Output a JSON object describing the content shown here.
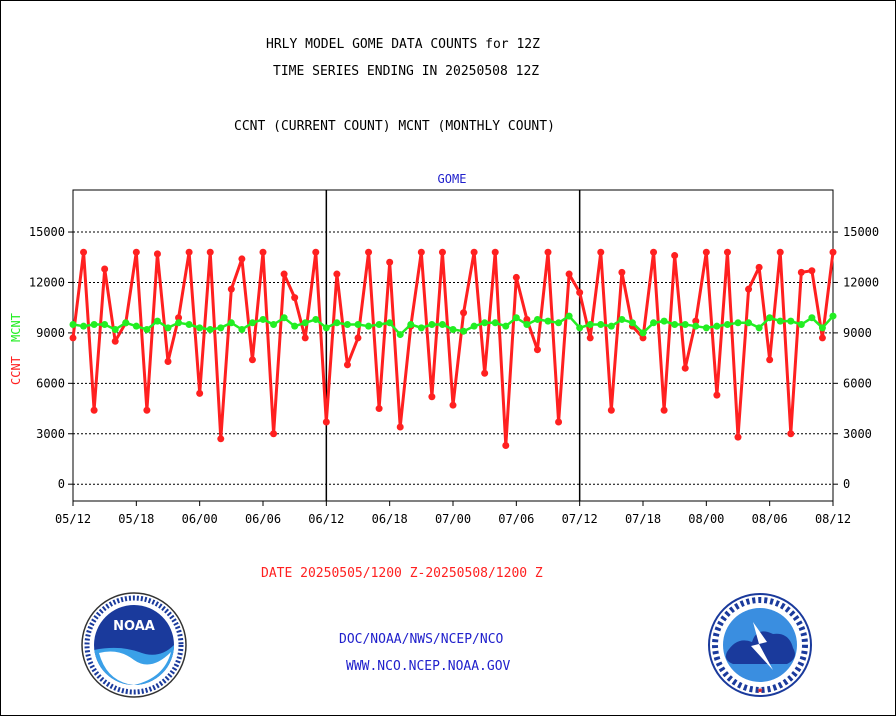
{
  "header": {
    "title_line1": "HRLY MODEL GOME DATA COUNTS for 12Z",
    "title_line2": "TIME SERIES ENDING IN 20250508 12Z",
    "subtitle": "CCNT (CURRENT COUNT) MCNT (MONTHLY COUNT)"
  },
  "footer": {
    "date_range": "DATE 20250505/1200 Z-20250508/1200 Z",
    "org_path": "DOC/NOAA/NWS/NCEP/NCO",
    "website": "WWW.NCO.NCEP.NOAA.GOV"
  },
  "logos": {
    "noaa_text": "NOAA",
    "nws_ring_text": "NATIONAL WEATHER SERVICE"
  },
  "colors": {
    "ccnt": "#ff2020",
    "mcnt": "#22ee22",
    "label_blue": "#2020cc",
    "date_red": "#ff2020"
  },
  "chart_data": {
    "type": "line",
    "title": "GOME",
    "ylabel_ccnt": "CCNT",
    "ylabel_mcnt": "MCNT",
    "ylim": [
      -1000,
      17500
    ],
    "yticks": [
      0,
      3000,
      6000,
      9000,
      12000,
      15000
    ],
    "ytick_labels": [
      "0",
      "3000",
      "6000",
      "9000",
      "12000",
      "15000"
    ],
    "xlim": [
      0,
      72
    ],
    "xticks": [
      0,
      6,
      12,
      18,
      24,
      30,
      36,
      42,
      48,
      54,
      60,
      66,
      72
    ],
    "xtick_labels": [
      "05/12",
      "05/18",
      "06/00",
      "06/06",
      "06/12",
      "06/18",
      "07/00",
      "07/06",
      "07/12",
      "07/18",
      "08/00",
      "08/06",
      "08/12"
    ],
    "day_dividers": [
      24,
      48
    ],
    "grid": true,
    "series": [
      {
        "name": "CCNT",
        "x": [
          0,
          1,
          2,
          3,
          4,
          5,
          6,
          7,
          8,
          9,
          10,
          11,
          12,
          13,
          14,
          15,
          16,
          17,
          18,
          19,
          20,
          21,
          22,
          23,
          24,
          25,
          26,
          27,
          28,
          29,
          30,
          31,
          32,
          33,
          34,
          35,
          36,
          37,
          38,
          39,
          40,
          41,
          42,
          43,
          44,
          45,
          46,
          47,
          48,
          49,
          50,
          51,
          52,
          53,
          54,
          55,
          56,
          57,
          58,
          59,
          60,
          61,
          62,
          63,
          64,
          65,
          66,
          67,
          68,
          69,
          70,
          71,
          72
        ],
        "values": [
          8700,
          13800,
          4400,
          12800,
          8500,
          9600,
          13800,
          4400,
          13700,
          7300,
          9900,
          13800,
          5400,
          13800,
          2700,
          11600,
          13400,
          7400,
          13800,
          3000,
          12500,
          11100,
          8700,
          13800,
          3700,
          12500,
          7100,
          8700,
          13800,
          4500,
          13200,
          3400,
          9400,
          13800,
          5200,
          13800,
          4700,
          10200,
          13800,
          6600,
          13800,
          2300,
          12300,
          9800,
          8000,
          13800,
          3700,
          12500,
          11400,
          8700,
          13800,
          4400,
          12600,
          9400,
          8700,
          13800,
          4400,
          13600,
          6900,
          9700,
          13800,
          5300,
          13800,
          2800,
          11600,
          12900,
          7400,
          13800,
          3000,
          12600,
          12700,
          8700,
          13800
        ]
      },
      {
        "name": "MCNT",
        "x": [
          0,
          1,
          2,
          3,
          4,
          5,
          6,
          7,
          8,
          9,
          10,
          11,
          12,
          13,
          14,
          15,
          16,
          17,
          18,
          19,
          20,
          21,
          22,
          23,
          24,
          25,
          26,
          27,
          28,
          29,
          30,
          31,
          32,
          33,
          34,
          35,
          36,
          37,
          38,
          39,
          40,
          41,
          42,
          43,
          44,
          45,
          46,
          47,
          48,
          49,
          50,
          51,
          52,
          53,
          54,
          55,
          56,
          57,
          58,
          59,
          60,
          61,
          62,
          63,
          64,
          65,
          66,
          67,
          68,
          69,
          70,
          71,
          72
        ],
        "values": [
          9500,
          9400,
          9500,
          9500,
          9200,
          9600,
          9400,
          9200,
          9700,
          9300,
          9600,
          9500,
          9300,
          9200,
          9300,
          9600,
          9200,
          9600,
          9800,
          9500,
          9900,
          9400,
          9600,
          9800,
          9300,
          9600,
          9500,
          9500,
          9400,
          9500,
          9600,
          8900,
          9500,
          9300,
          9500,
          9500,
          9200,
          9100,
          9400,
          9600,
          9600,
          9400,
          9900,
          9500,
          9800,
          9700,
          9600,
          10000,
          9300,
          9500,
          9500,
          9400,
          9800,
          9600,
          9000,
          9600,
          9700,
          9500,
          9500,
          9400,
          9300,
          9400,
          9500,
          9600,
          9600,
          9300,
          9900,
          9700,
          9700,
          9500,
          9900,
          9300,
          10000
        ]
      }
    ]
  }
}
